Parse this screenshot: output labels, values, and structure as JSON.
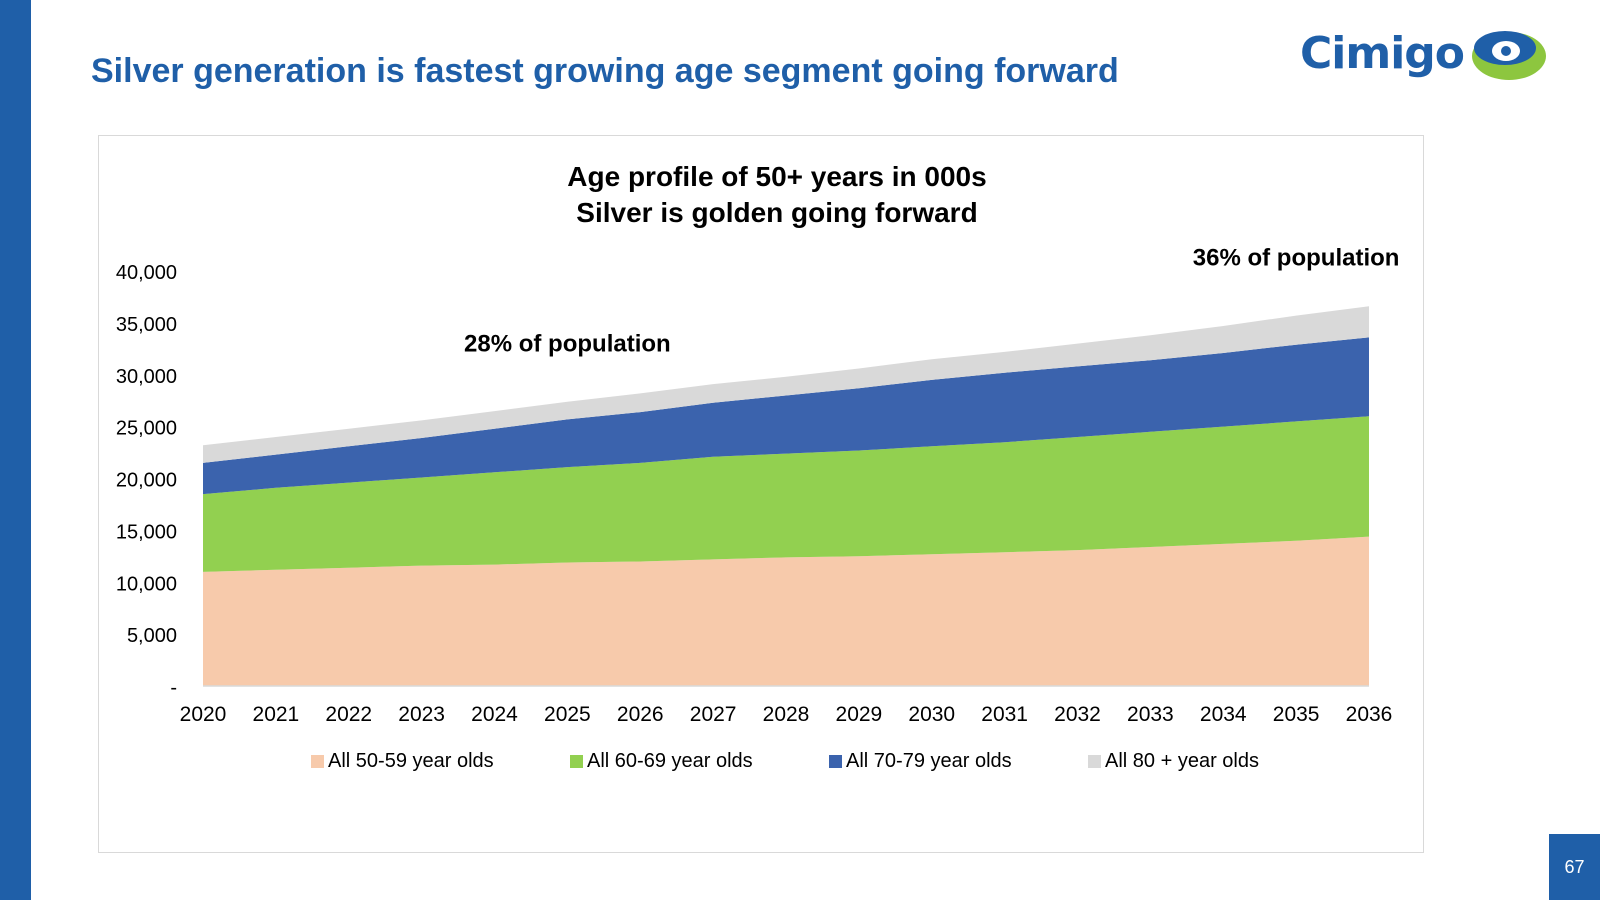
{
  "slide": {
    "title": "Silver generation is fastest growing age segment going forward",
    "page_number": "67",
    "logo_text": "Cimigo"
  },
  "colors": {
    "brand_blue": "#1f5fa8",
    "logo_green": "#8dc63f",
    "series_50_59": "#f7caab",
    "series_60_69": "#92d050",
    "series_70_79": "#3b63ad",
    "series_80_plus": "#d9d9d9"
  },
  "chart_data": {
    "type": "area",
    "stacked": true,
    "title_lines": [
      "Age profile of 50+ years in 000s",
      "Silver is golden going forward"
    ],
    "x": [
      "2020",
      "2021",
      "2022",
      "2023",
      "2024",
      "2025",
      "2026",
      "2027",
      "2028",
      "2029",
      "2030",
      "2031",
      "2032",
      "2033",
      "2034",
      "2035",
      "2036"
    ],
    "ylim": [
      0,
      40000
    ],
    "yticks": [
      0,
      5000,
      10000,
      15000,
      20000,
      25000,
      30000,
      35000,
      40000
    ],
    "ytick_labels": [
      "-",
      "5,000",
      "10,000",
      "15,000",
      "20,000",
      "25,000",
      "30,000",
      "35,000",
      "40,000"
    ],
    "legend_position": "bottom",
    "series": [
      {
        "name": "All 50-59 year olds",
        "color": "#f7caab",
        "values": [
          11000,
          11200,
          11400,
          11600,
          11700,
          11900,
          12000,
          12200,
          12400,
          12500,
          12700,
          12900,
          13100,
          13400,
          13700,
          14000,
          14400
        ]
      },
      {
        "name": "All 60-69 year olds",
        "color": "#92d050",
        "values": [
          7500,
          7900,
          8200,
          8500,
          8900,
          9200,
          9500,
          9900,
          10000,
          10200,
          10400,
          10600,
          10900,
          11100,
          11300,
          11500,
          11600
        ]
      },
      {
        "name": "All 70-79 year olds",
        "color": "#3b63ad",
        "values": [
          3000,
          3200,
          3500,
          3800,
          4200,
          4600,
          4900,
          5200,
          5600,
          6000,
          6400,
          6700,
          6800,
          6900,
          7100,
          7400,
          7600
        ]
      },
      {
        "name": "All 80 + year olds",
        "color": "#d9d9d9",
        "values": [
          1700,
          1700,
          1700,
          1700,
          1700,
          1700,
          1800,
          1800,
          1800,
          1900,
          2000,
          2000,
          2200,
          2400,
          2600,
          2800,
          3000
        ]
      }
    ],
    "annotations": [
      {
        "text": "28%  of population",
        "at_year": "2025"
      },
      {
        "text": "36%  of population",
        "at_year": "2035"
      }
    ]
  }
}
